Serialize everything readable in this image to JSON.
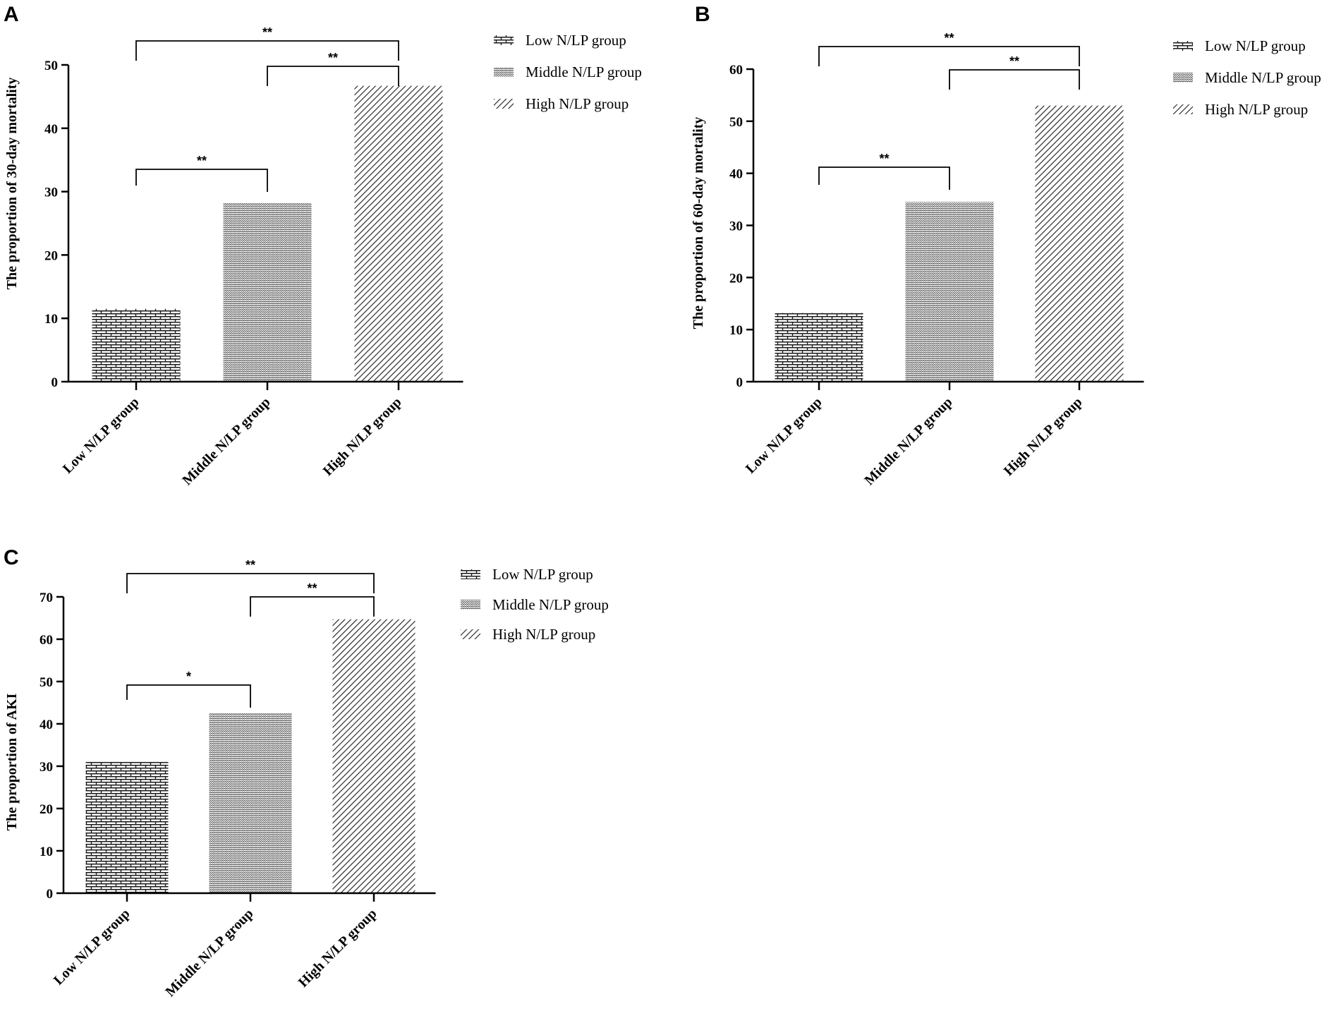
{
  "figure": {
    "colors": {
      "ink": "#000000",
      "background": "#ffffff"
    },
    "pattern_names": [
      "brick-pattern",
      "dots-pattern",
      "diagonal-pattern"
    ]
  },
  "chart_data": [
    {
      "panel": "A",
      "type": "bar",
      "categories": [
        "Low N/LP group",
        "Middle N/LP group",
        "High N/LP group"
      ],
      "values": [
        11.5,
        28.2,
        46.7
      ],
      "ylabel": "The proportion of 30-day mortality",
      "xlabel": "",
      "ylim": [
        0,
        50
      ],
      "yticks": [
        0,
        10,
        20,
        30,
        40,
        50
      ],
      "legend": [
        "Low N/LP group",
        "Middle N/LP group",
        "High N/LP group"
      ],
      "legend_position": "right",
      "significance": [
        {
          "from": 0,
          "to": 1,
          "label": "**"
        },
        {
          "from": 1,
          "to": 2,
          "label": "**"
        },
        {
          "from": 0,
          "to": 2,
          "label": "**"
        }
      ]
    },
    {
      "panel": "B",
      "type": "bar",
      "categories": [
        "Low N/LP group",
        "Middle N/LP group",
        "High N/LP group"
      ],
      "values": [
        13.2,
        34.5,
        53.0
      ],
      "ylabel": "The proportion of 60-day mortality",
      "xlabel": "",
      "ylim": [
        0,
        60
      ],
      "yticks": [
        0,
        10,
        20,
        30,
        40,
        50,
        60
      ],
      "legend": [
        "Low N/LP group",
        "Middle N/LP group",
        "High N/LP group"
      ],
      "legend_position": "right",
      "significance": [
        {
          "from": 0,
          "to": 1,
          "label": "**"
        },
        {
          "from": 1,
          "to": 2,
          "label": "**"
        },
        {
          "from": 0,
          "to": 2,
          "label": "**"
        }
      ]
    },
    {
      "panel": "C",
      "type": "bar",
      "categories": [
        "Low N/LP group",
        "Middle N/LP group",
        "High N/LP group"
      ],
      "values": [
        31.0,
        42.5,
        64.7
      ],
      "ylabel": "The proportion of AKI",
      "xlabel": "",
      "ylim": [
        0,
        70
      ],
      "yticks": [
        0,
        10,
        20,
        30,
        40,
        50,
        60,
        70
      ],
      "legend": [
        "Low N/LP group",
        "Middle N/LP group",
        "High N/LP group"
      ],
      "legend_position": "right",
      "significance": [
        {
          "from": 0,
          "to": 1,
          "label": "*"
        },
        {
          "from": 1,
          "to": 2,
          "label": "**"
        },
        {
          "from": 0,
          "to": 2,
          "label": "**"
        }
      ]
    }
  ]
}
